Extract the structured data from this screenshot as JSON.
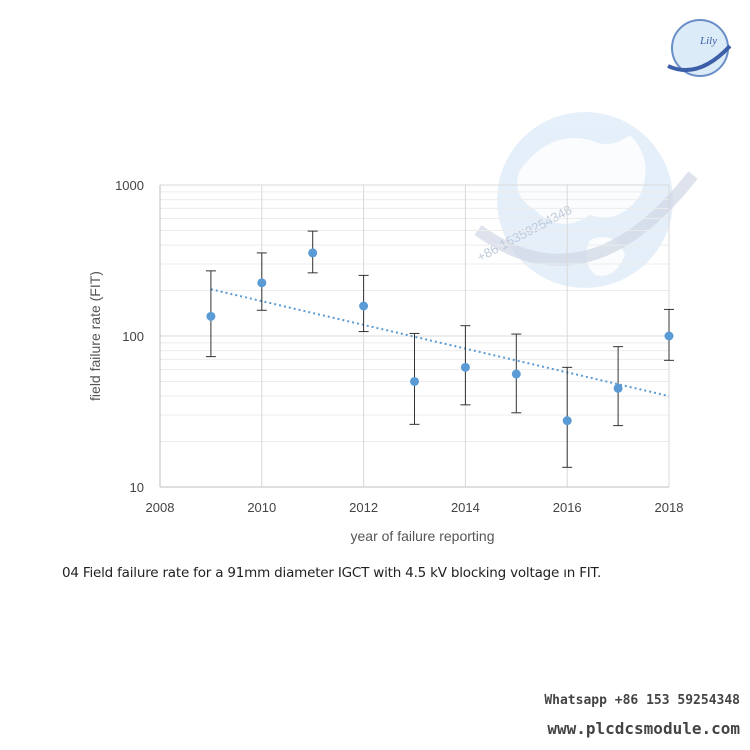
{
  "chart_data": {
    "type": "scatter",
    "title": "",
    "xlabel": "year of failure reporting",
    "ylabel": "field failure rate (FIT)",
    "xlim": [
      2008,
      2018
    ],
    "ylim": [
      10,
      1000
    ],
    "yscale": "log",
    "x_ticks": [
      "2008",
      "2010",
      "2012",
      "2014",
      "2016",
      "2018"
    ],
    "y_ticks": [
      "10",
      "100",
      "1000"
    ],
    "grid": true,
    "x": [
      2009,
      2010,
      2011,
      2012,
      2013,
      2014,
      2015,
      2016,
      2017,
      2018
    ],
    "y": [
      135,
      225,
      355,
      158,
      50,
      62,
      56,
      27.5,
      45,
      100
    ],
    "error_low": [
      73,
      148,
      262,
      107,
      26,
      35,
      31,
      13.5,
      25.5,
      69
    ],
    "error_high": [
      270,
      355,
      495,
      252,
      104,
      117,
      103,
      62,
      85,
      150
    ],
    "trendline": {
      "x": [
        2009,
        2018
      ],
      "y": [
        204,
        40
      ]
    },
    "colors": {
      "point": "#5b9bd5",
      "error_bar": "#333333",
      "trend": "#5b9bd5",
      "grid": "#d9d9d9"
    }
  },
  "caption": "04 Field failure rate for a 91mm diameter IGCT with 4.5 kV blocking voltage ın FIT.",
  "watermark": {
    "contact": "Whatsapp +86 153 59254348",
    "site": "www.plcdcsmodule.com",
    "overlay": "+86 15359254348",
    "logo_text": "Lily"
  }
}
